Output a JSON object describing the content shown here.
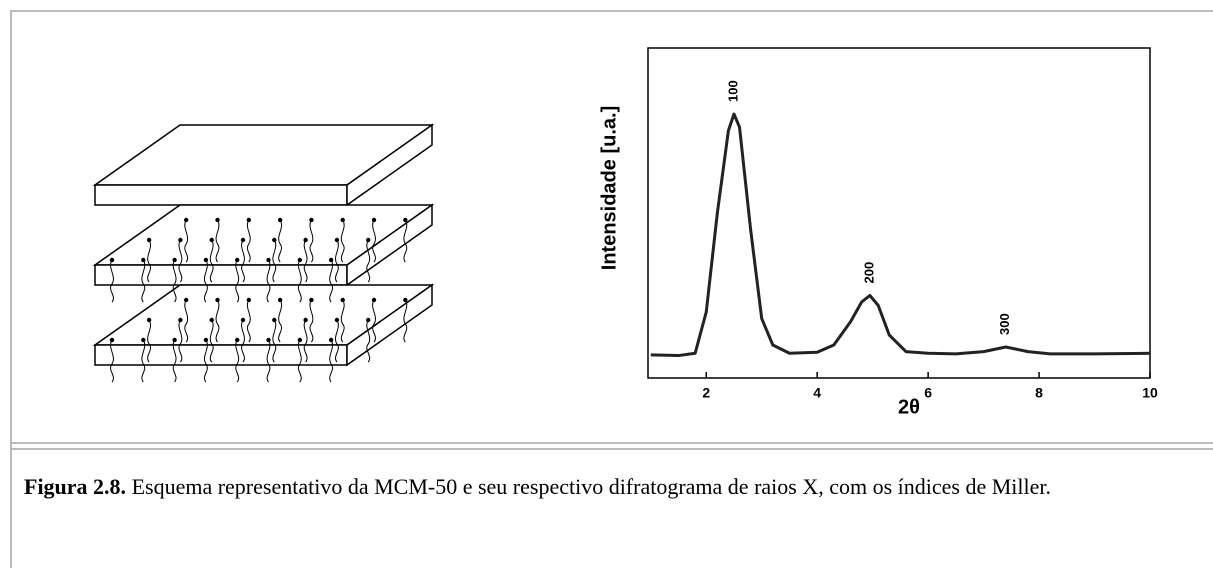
{
  "chart_data": {
    "type": "line",
    "xlabel": "2θ",
    "ylabel": "Intensidade [u.a.]",
    "x": [
      1.0,
      1.5,
      1.8,
      2.0,
      2.2,
      2.4,
      2.5,
      2.6,
      2.8,
      3.0,
      3.2,
      3.5,
      4.0,
      4.3,
      4.6,
      4.8,
      4.95,
      5.1,
      5.3,
      5.6,
      6.0,
      6.5,
      7.0,
      7.4,
      7.8,
      8.2,
      9.0,
      10.0
    ],
    "values": [
      7,
      6.8,
      7.5,
      20,
      50,
      75,
      80,
      76,
      45,
      18,
      10,
      7.5,
      7.8,
      10,
      17,
      23,
      25,
      22,
      13,
      8,
      7.5,
      7.3,
      8,
      9.4,
      8,
      7.3,
      7.3,
      7.5
    ],
    "color": "#222222",
    "xlim": [
      0.95,
      10
    ],
    "xticks": [
      2,
      4,
      6,
      8,
      10
    ],
    "ylim": [
      0,
      100
    ],
    "annotations": [
      {
        "text": "100",
        "x": 2.5,
        "y": 80
      },
      {
        "text": "200",
        "x": 4.95,
        "y": 25
      },
      {
        "text": "300",
        "x": 7.4,
        "y": 9.4
      }
    ]
  },
  "caption": {
    "label": "Figura 2.8.",
    "text": "Esquema representativo da MCM-50 e seu respectivo difratograma de raios X, com os índices de Miller."
  }
}
